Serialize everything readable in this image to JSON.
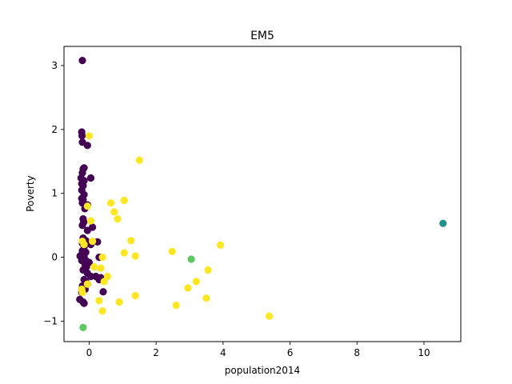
{
  "chart_data": {
    "type": "scatter",
    "title": "EM5",
    "xlabel": "population2014",
    "ylabel": "Poverty",
    "xlim": [
      -0.75,
      11.1
    ],
    "ylim": [
      -1.32,
      3.3
    ],
    "xticks": [
      0,
      2,
      4,
      6,
      8,
      10
    ],
    "yticks": [
      -1,
      0,
      1,
      2,
      3
    ],
    "grid": false,
    "colors": {
      "cluster0": "#440154",
      "cluster1": "#21918c",
      "cluster2": "#5ec962",
      "cluster3": "#fde725"
    },
    "series": [
      {
        "cluster": 0,
        "color": "#440154",
        "points": [
          [
            -0.2,
            3.08
          ],
          [
            -0.22,
            1.96
          ],
          [
            -0.21,
            1.9
          ],
          [
            -0.2,
            1.8
          ],
          [
            -0.05,
            1.75
          ],
          [
            -0.18,
            1.38
          ],
          [
            -0.15,
            1.4
          ],
          [
            -0.2,
            1.32
          ],
          [
            -0.24,
            1.24
          ],
          [
            0.05,
            1.24
          ],
          [
            -0.15,
            1.2
          ],
          [
            -0.22,
            1.15
          ],
          [
            -0.18,
            1.12
          ],
          [
            -0.22,
            1.05
          ],
          [
            -0.15,
            0.98
          ],
          [
            -0.22,
            0.92
          ],
          [
            -0.18,
            0.9
          ],
          [
            -0.2,
            0.85
          ],
          [
            -0.13,
            0.76
          ],
          [
            -0.05,
            0.82
          ],
          [
            -0.18,
            0.6
          ],
          [
            -0.16,
            0.55
          ],
          [
            -0.2,
            0.5
          ],
          [
            0.1,
            0.47
          ],
          [
            -0.05,
            0.42
          ],
          [
            -0.18,
            0.3
          ],
          [
            -0.1,
            0.26
          ],
          [
            -0.2,
            0.22
          ],
          [
            0.05,
            0.2
          ],
          [
            0.25,
            0.24
          ],
          [
            -0.15,
            0.16
          ],
          [
            -0.2,
            0.1
          ],
          [
            -0.1,
            0.08
          ],
          [
            -0.27,
            0.02
          ],
          [
            -0.15,
            0.02
          ],
          [
            0.3,
            0.0
          ],
          [
            -0.22,
            -0.05
          ],
          [
            -0.1,
            -0.05
          ],
          [
            0.0,
            -0.08
          ],
          [
            -0.12,
            -0.12
          ],
          [
            -0.08,
            -0.15
          ],
          [
            -0.18,
            -0.2
          ],
          [
            -0.05,
            -0.25
          ],
          [
            0.05,
            -0.3
          ],
          [
            0.2,
            -0.3
          ],
          [
            -0.15,
            -0.35
          ],
          [
            0.3,
            -0.35
          ],
          [
            0.35,
            -0.32
          ],
          [
            -0.1,
            -0.38
          ],
          [
            -0.05,
            -0.42
          ],
          [
            -0.2,
            -0.45
          ],
          [
            -0.12,
            -0.5
          ],
          [
            0.42,
            -0.54
          ],
          [
            -0.22,
            -0.55
          ],
          [
            -0.28,
            -0.66
          ],
          [
            -0.18,
            -0.7
          ],
          [
            -0.15,
            -0.72
          ]
        ]
      },
      {
        "cluster": 1,
        "color": "#21918c",
        "points": [
          [
            10.57,
            0.53
          ]
        ]
      },
      {
        "cluster": 2,
        "color": "#5ec962",
        "points": [
          [
            3.05,
            -0.03
          ],
          [
            -0.18,
            -1.1
          ]
        ]
      },
      {
        "cluster": 3,
        "color": "#fde725",
        "points": [
          [
            1.5,
            1.52
          ],
          [
            0.0,
            1.9
          ],
          [
            0.65,
            0.85
          ],
          [
            1.05,
            0.89
          ],
          [
            -0.05,
            0.8
          ],
          [
            0.75,
            0.71
          ],
          [
            0.85,
            0.6
          ],
          [
            0.05,
            0.57
          ],
          [
            1.25,
            0.26
          ],
          [
            3.92,
            0.19
          ],
          [
            -0.2,
            0.25
          ],
          [
            -0.15,
            0.2
          ],
          [
            1.05,
            0.07
          ],
          [
            1.38,
            0.02
          ],
          [
            2.48,
            0.09
          ],
          [
            0.4,
            0.0
          ],
          [
            0.1,
            0.25
          ],
          [
            0.15,
            -0.15
          ],
          [
            0.35,
            -0.17
          ],
          [
            3.55,
            -0.2
          ],
          [
            0.55,
            -0.3
          ],
          [
            3.2,
            -0.38
          ],
          [
            0.45,
            -0.38
          ],
          [
            -0.05,
            -0.42
          ],
          [
            2.95,
            -0.48
          ],
          [
            -0.22,
            -0.5
          ],
          [
            -0.2,
            -0.55
          ],
          [
            1.38,
            -0.6
          ],
          [
            3.5,
            -0.64
          ],
          [
            0.3,
            -0.68
          ],
          [
            0.9,
            -0.7
          ],
          [
            2.6,
            -0.75
          ],
          [
            0.4,
            -0.84
          ],
          [
            5.38,
            -0.92
          ]
        ]
      }
    ]
  }
}
